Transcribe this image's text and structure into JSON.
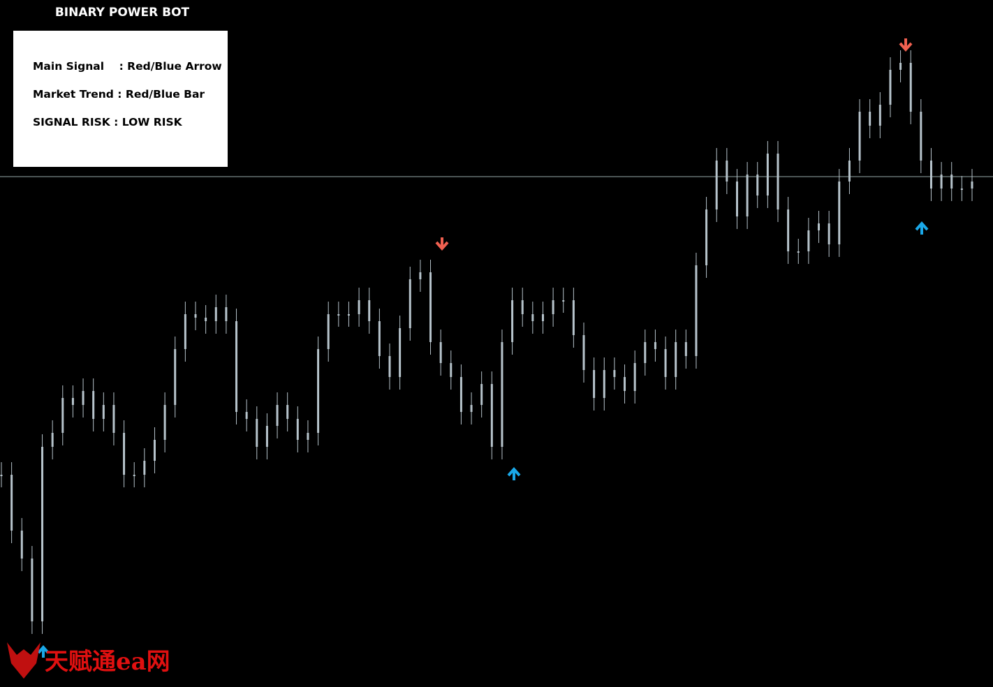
{
  "header": {
    "title": "BINARY POWER BOT"
  },
  "panel": {
    "lines": [
      "Main Signal    : Red/Blue Arrow",
      "Market Trend : Red/Blue Bar",
      "SIGNAL RISK : LOW RISK"
    ]
  },
  "watermark": "天赋通ea网",
  "chart_data": {
    "type": "candles",
    "color": "#b7c4cc",
    "values": [
      304,
      224,
      184,
      94,
      344,
      364,
      414,
      404,
      424,
      384,
      404,
      364,
      304,
      304,
      324,
      354,
      404,
      484,
      534,
      529,
      524,
      544,
      524,
      394,
      384,
      344,
      374,
      404,
      384,
      354,
      364,
      484,
      534,
      534,
      534,
      554,
      524,
      474,
      444,
      514,
      584,
      594,
      494,
      464,
      444,
      394,
      404,
      434,
      344,
      494,
      554,
      534,
      524,
      534,
      554,
      554,
      504,
      454,
      414,
      454,
      444,
      424,
      464,
      494,
      484,
      444,
      494,
      474,
      604,
      684,
      754,
      724,
      674,
      734,
      704,
      764,
      684,
      624,
      624,
      654,
      664,
      634,
      724,
      754,
      824,
      804,
      834,
      884,
      894,
      824,
      754,
      714,
      734,
      714,
      714,
      724
    ]
  }
}
